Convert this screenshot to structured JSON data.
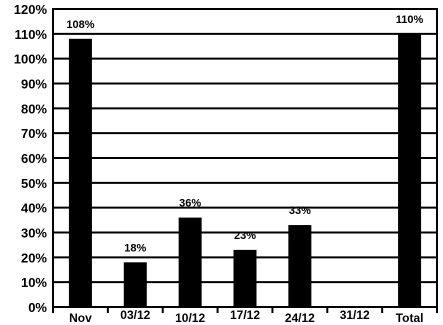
{
  "chart_data": {
    "type": "bar",
    "title": "",
    "xlabel": "",
    "ylabel": "",
    "categories": [
      "Nov",
      "03/12",
      "10/12",
      "17/12",
      "24/12",
      "31/12",
      "Total"
    ],
    "values": [
      108,
      18,
      36,
      23,
      33,
      0,
      110
    ],
    "data_labels": [
      "108%",
      "18%",
      "36%",
      "23%",
      "33%",
      "",
      "110%"
    ],
    "ylim": [
      0,
      120
    ],
    "yticks": [
      0,
      10,
      20,
      30,
      40,
      50,
      60,
      70,
      80,
      90,
      100,
      110,
      120
    ],
    "ytick_labels": [
      "0%",
      "10%",
      "20%",
      "30%",
      "40%",
      "50%",
      "60%",
      "70%",
      "80%",
      "90%",
      "100%",
      "110%",
      "120%"
    ],
    "grid": true,
    "legend": "none",
    "colors": {
      "bar": "#000000",
      "grid": "#000000",
      "background": "#ffffff"
    }
  }
}
